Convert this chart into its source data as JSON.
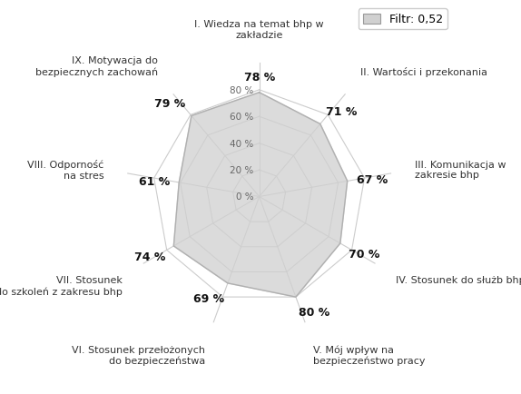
{
  "categories": [
    "I. Wiedza na temat bhp w\nzakładzie",
    "II. Wartości i przekonania",
    "III. Komunikacja w\nzakresie bhp",
    "IV. Stosunek do służb bhp",
    "V. Mój wpływ na\nbezpieczeństwo pracy",
    "VI. Stosunek przełożonych\ndo bezpieczeństwa",
    "VII. Stosunek\ndo szkoleń z zakresu bhp",
    "VIII. Odporność\nna stres",
    "IX. Motywacja do\nbezpiecznych zachowań"
  ],
  "values": [
    78,
    71,
    67,
    70,
    80,
    69,
    74,
    61,
    79
  ],
  "r_max": 100,
  "r_ticks": [
    0,
    20,
    40,
    60,
    80
  ],
  "r_tick_labels": [
    "0 %",
    "20 %",
    "40 %",
    "60 %",
    "80 %"
  ],
  "fill_color": "#d0d0d0",
  "fill_alpha": 0.75,
  "line_color": "#b0b0b0",
  "grid_color": "#cccccc",
  "spoke_color": "#cccccc",
  "legend_label": "Filtr: 0,52",
  "legend_color": "#d0d0d0",
  "value_fontsize": 9,
  "category_fontsize": 8,
  "tick_fontsize": 7.5,
  "value_fontweight": "bold"
}
